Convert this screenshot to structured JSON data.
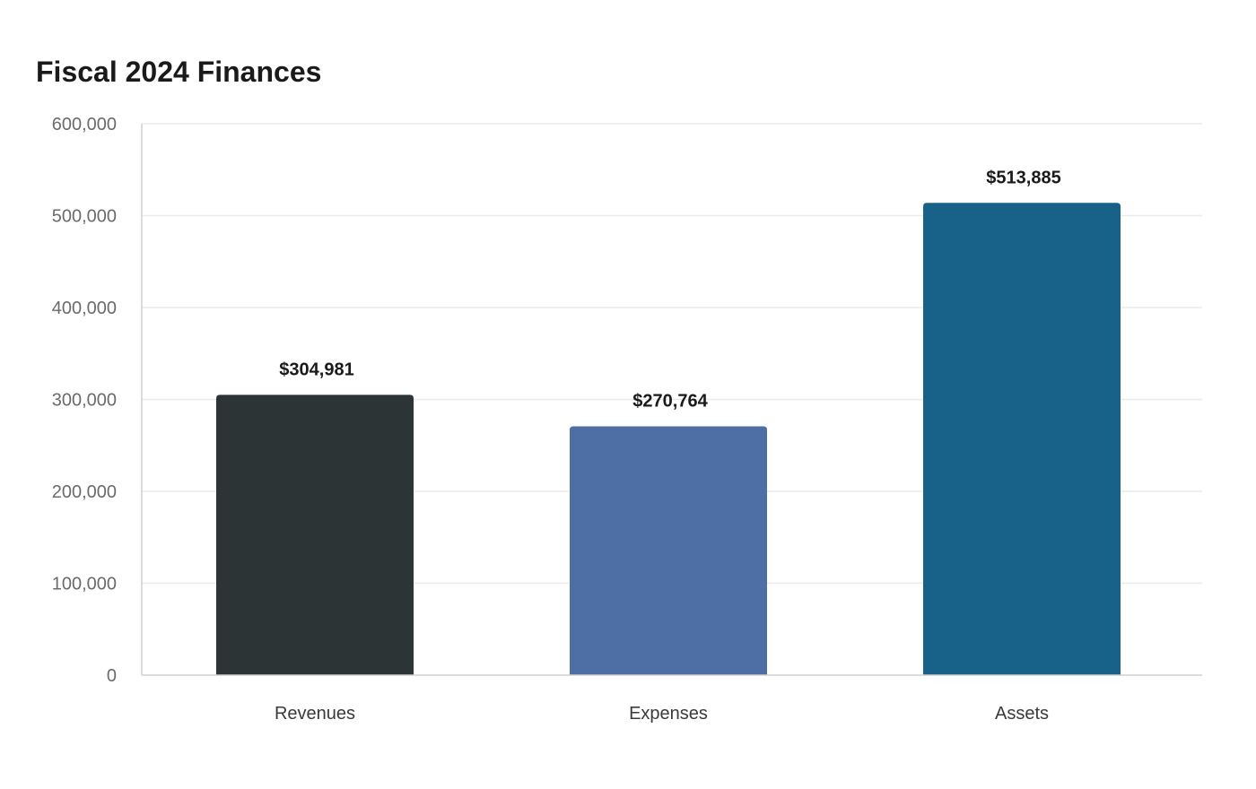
{
  "chart_data": {
    "type": "bar",
    "title": "Fiscal 2024 Finances",
    "categories": [
      "Revenues",
      "Expenses",
      "Assets"
    ],
    "values": [
      304981,
      270764,
      513885
    ],
    "value_labels": [
      "$304,981",
      "$270,764",
      "$513,885"
    ],
    "colors": [
      "#2d3436",
      "#4e6fa6",
      "#186189"
    ],
    "ylim": [
      0,
      600000
    ],
    "yticks": [
      0,
      100000,
      200000,
      300000,
      400000,
      500000,
      600000
    ],
    "ytick_labels": [
      "0",
      "100,000",
      "200,000",
      "300,000",
      "400,000",
      "500,000",
      "600,000"
    ],
    "grid": true,
    "gridline_color": "#ebebeb",
    "axis_color": "#d0d0d0",
    "xlabel": "",
    "ylabel": "",
    "legend": "none"
  }
}
